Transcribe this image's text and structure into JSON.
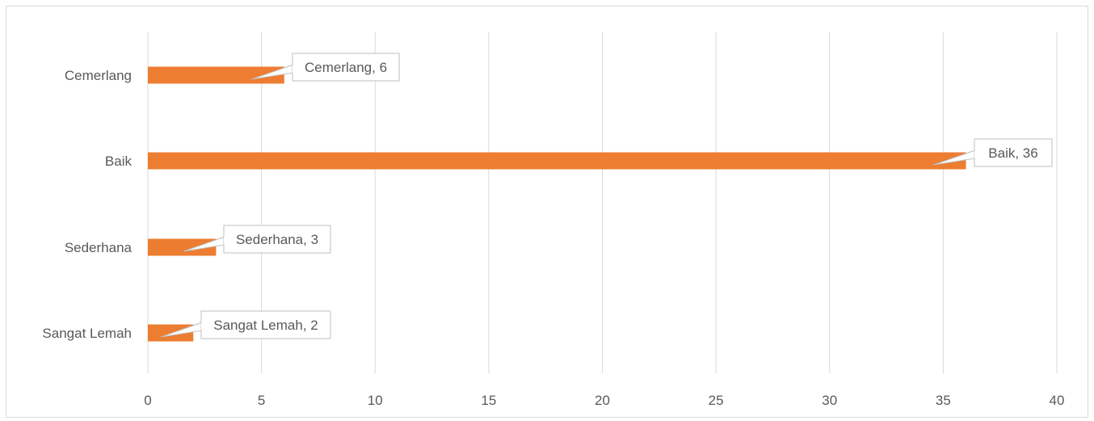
{
  "chart_data": {
    "type": "bar",
    "orientation": "horizontal",
    "categories": [
      "Sangat Lemah",
      "Sederhana",
      "Baik",
      "Cemerlang"
    ],
    "values": [
      2,
      3,
      36,
      6
    ],
    "data_labels": [
      "Sangat Lemah, 2",
      "Sederhana, 3",
      "Baik, 36",
      "Cemerlang, 6"
    ],
    "xlim": [
      0,
      40
    ],
    "x_ticks": [
      0,
      5,
      10,
      15,
      20,
      25,
      30,
      35,
      40
    ],
    "x_tick_labels": [
      "0",
      "5",
      "10",
      "15",
      "20",
      "25",
      "30",
      "35",
      "40"
    ],
    "grid": "vertical",
    "bar_color": "#ED7D31",
    "gridline_color": "#D9D9D9",
    "label_border_color": "#BFBFBF",
    "title": "",
    "xlabel": "",
    "ylabel": ""
  }
}
